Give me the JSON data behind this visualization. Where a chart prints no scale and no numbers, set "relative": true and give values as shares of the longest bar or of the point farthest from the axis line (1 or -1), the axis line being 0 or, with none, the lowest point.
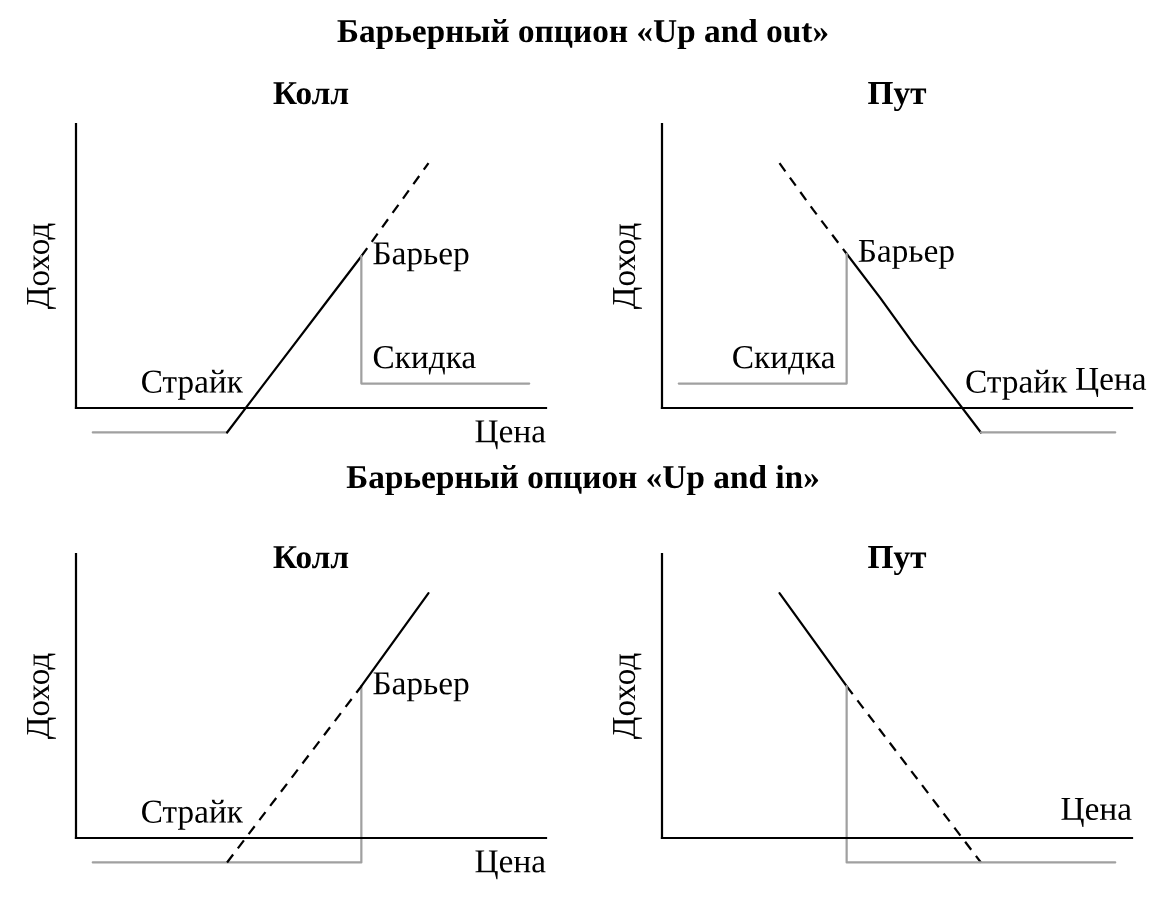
{
  "chart_data": [
    {
      "type": "line",
      "relative": true,
      "title": "Барьерный опцион «Up and out»",
      "subtitle": "Колл",
      "xlabel": "Цена",
      "ylabel": "Доход",
      "categories": [
        null,
        null,
        null,
        null,
        null,
        null,
        null,
        null,
        null,
        null,
        null,
        null,
        null,
        null
      ],
      "annotations": [
        "Страйк",
        "Барьер",
        "Скидка"
      ],
      "series": [
        {
          "color": "#a0a0a0",
          "values": [
            -0.1,
            -0.1,
            -0.1,
            -0.1,
            -0.1,
            null,
            null,
            null,
            null,
            null,
            null,
            null,
            null,
            null
          ]
        },
        {
          "color": "#000000",
          "values": [
            null,
            null,
            null,
            null,
            -0.1,
            0.08,
            0.26,
            0.44,
            0.62,
            null,
            null,
            null,
            null,
            null
          ]
        },
        {
          "color": "#000000",
          "line_style": "dashed",
          "values": [
            null,
            null,
            null,
            null,
            null,
            null,
            null,
            null,
            0.62,
            0.81,
            1,
            null,
            null,
            null
          ]
        },
        {
          "type": "step",
          "color": "#a0a0a0",
          "values": [
            null,
            null,
            null,
            null,
            null,
            null,
            null,
            null,
            0.62,
            0.1,
            0.1,
            0.1,
            0.1,
            0.1
          ]
        }
      ]
    },
    {
      "type": "line",
      "relative": true,
      "subtitle": "Пут",
      "xlabel": "Цена",
      "ylabel": "Доход",
      "categories": [
        null,
        null,
        null,
        null,
        null,
        null,
        null,
        null,
        null,
        null,
        null,
        null,
        null,
        null
      ],
      "annotations": [
        "Страйк",
        "Барьер",
        "Скидка"
      ],
      "series": [
        {
          "color": "#000000",
          "line_style": "dashed",
          "values": [
            null,
            null,
            null,
            1,
            0.81,
            0.63,
            null,
            null,
            null,
            null,
            null,
            null,
            null,
            null
          ]
        },
        {
          "color": "#000000",
          "values": [
            null,
            null,
            null,
            null,
            null,
            0.63,
            0.45,
            0.26,
            0.08,
            -0.1,
            null,
            null,
            null,
            null
          ]
        },
        {
          "color": "#a0a0a0",
          "values": [
            null,
            null,
            null,
            null,
            null,
            null,
            null,
            null,
            null,
            -0.1,
            -0.1,
            -0.1,
            -0.1,
            -0.1
          ]
        },
        {
          "type": "step",
          "color": "#a0a0a0",
          "values": [
            0.1,
            0.1,
            0.1,
            0.1,
            0.1,
            0.63,
            null,
            null,
            null,
            null,
            null,
            null,
            null,
            null
          ]
        }
      ]
    },
    {
      "type": "line",
      "relative": true,
      "title": "Барьерный опцион «Up and in»",
      "subtitle": "Колл",
      "xlabel": "Цена",
      "ylabel": "Доход",
      "categories": [
        null,
        null,
        null,
        null,
        null,
        null,
        null,
        null,
        null,
        null,
        null,
        null,
        null,
        null
      ],
      "annotations": [
        "Страйк",
        "Барьер"
      ],
      "series": [
        {
          "type": "step",
          "color": "#a0a0a0",
          "values": [
            -0.1,
            -0.1,
            -0.1,
            -0.1,
            -0.1,
            -0.1,
            -0.1,
            -0.1,
            0.62,
            null,
            null,
            null,
            null,
            null
          ]
        },
        {
          "color": "#000000",
          "line_style": "dashed",
          "values": [
            null,
            null,
            null,
            null,
            -0.1,
            0.08,
            0.26,
            0.44,
            0.62,
            null,
            null,
            null,
            null,
            null
          ]
        },
        {
          "color": "#000000",
          "values": [
            null,
            null,
            null,
            null,
            null,
            null,
            null,
            null,
            0.62,
            0.81,
            1,
            null,
            null,
            null
          ]
        }
      ]
    },
    {
      "type": "line",
      "relative": true,
      "subtitle": "Пут",
      "xlabel": "Цена",
      "ylabel": "Доход",
      "categories": [
        null,
        null,
        null,
        null,
        null,
        null,
        null,
        null,
        null,
        null,
        null,
        null,
        null,
        null
      ],
      "series": [
        {
          "color": "#000000",
          "values": [
            null,
            null,
            null,
            1,
            0.81,
            0.62,
            null,
            null,
            null,
            null,
            null,
            null,
            null,
            null
          ]
        },
        {
          "color": "#000000",
          "line_style": "dashed",
          "values": [
            null,
            null,
            null,
            null,
            null,
            0.62,
            0.44,
            0.26,
            0.08,
            -0.1,
            null,
            null,
            null,
            null
          ]
        },
        {
          "type": "step",
          "color": "#a0a0a0",
          "values": [
            null,
            null,
            null,
            null,
            null,
            0.62,
            -0.1,
            -0.1,
            -0.1,
            -0.1,
            -0.1,
            -0.1,
            -0.1,
            -0.1
          ]
        }
      ]
    }
  ]
}
